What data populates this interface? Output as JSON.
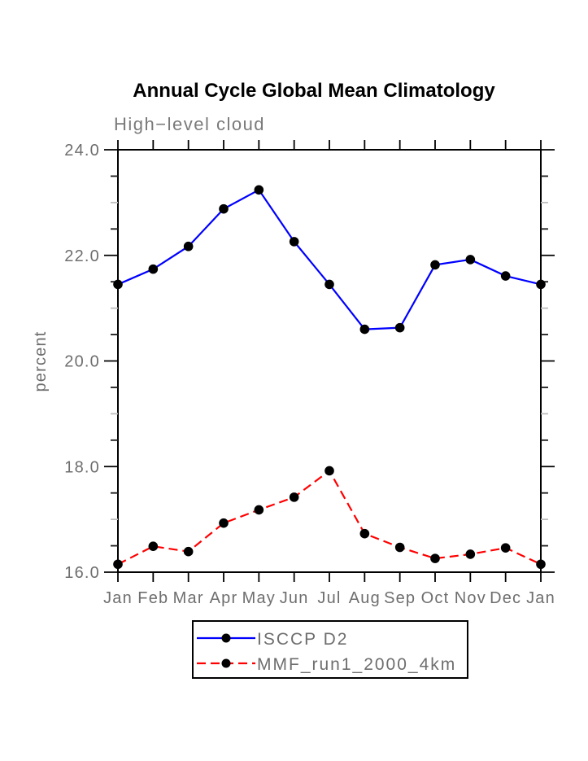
{
  "chart_data": {
    "type": "line",
    "title": "Annual Cycle Global Mean Climatology",
    "subtitle": "High−level cloud",
    "ylabel": "percent",
    "xlabel": "",
    "x_tick_labels": [
      "Jan",
      "Feb",
      "Mar",
      "Apr",
      "May",
      "Jun",
      "Jul",
      "Aug",
      "Sep",
      "Oct",
      "Nov",
      "Dec",
      "Jan"
    ],
    "ylim": [
      16.0,
      24.0
    ],
    "y_ticks_major": [
      16.0,
      18.0,
      20.0,
      22.0,
      24.0
    ],
    "y_tick_labels": [
      "16.0",
      "18.0",
      "20.0",
      "22.0",
      "24.0"
    ],
    "y_minor_step": 0.5,
    "grid": false,
    "legend_position": "bottom-center",
    "series": [
      {
        "name": "ISCCP D2",
        "color": "#0000ff",
        "style": "solid",
        "marker": "circle",
        "marker_color": "#000000",
        "values": [
          21.45,
          21.74,
          22.17,
          22.88,
          23.24,
          22.26,
          21.45,
          20.6,
          20.63,
          21.82,
          21.92,
          21.61,
          21.45
        ]
      },
      {
        "name": "MMF_run1_2000_4km",
        "color": "#ff0000",
        "style": "dashed",
        "marker": "circle",
        "marker_color": "#000000",
        "values": [
          16.15,
          16.49,
          16.39,
          16.93,
          17.18,
          17.42,
          17.92,
          16.73,
          16.47,
          16.26,
          16.34,
          16.46,
          16.15
        ]
      }
    ]
  },
  "colors": {
    "axis": "#000000",
    "label_gray": "#6e6e6e",
    "minor_tick_dark": "#1a1a1a",
    "minor_tick_light": "#bdbdbd",
    "background": "#ffffff"
  }
}
